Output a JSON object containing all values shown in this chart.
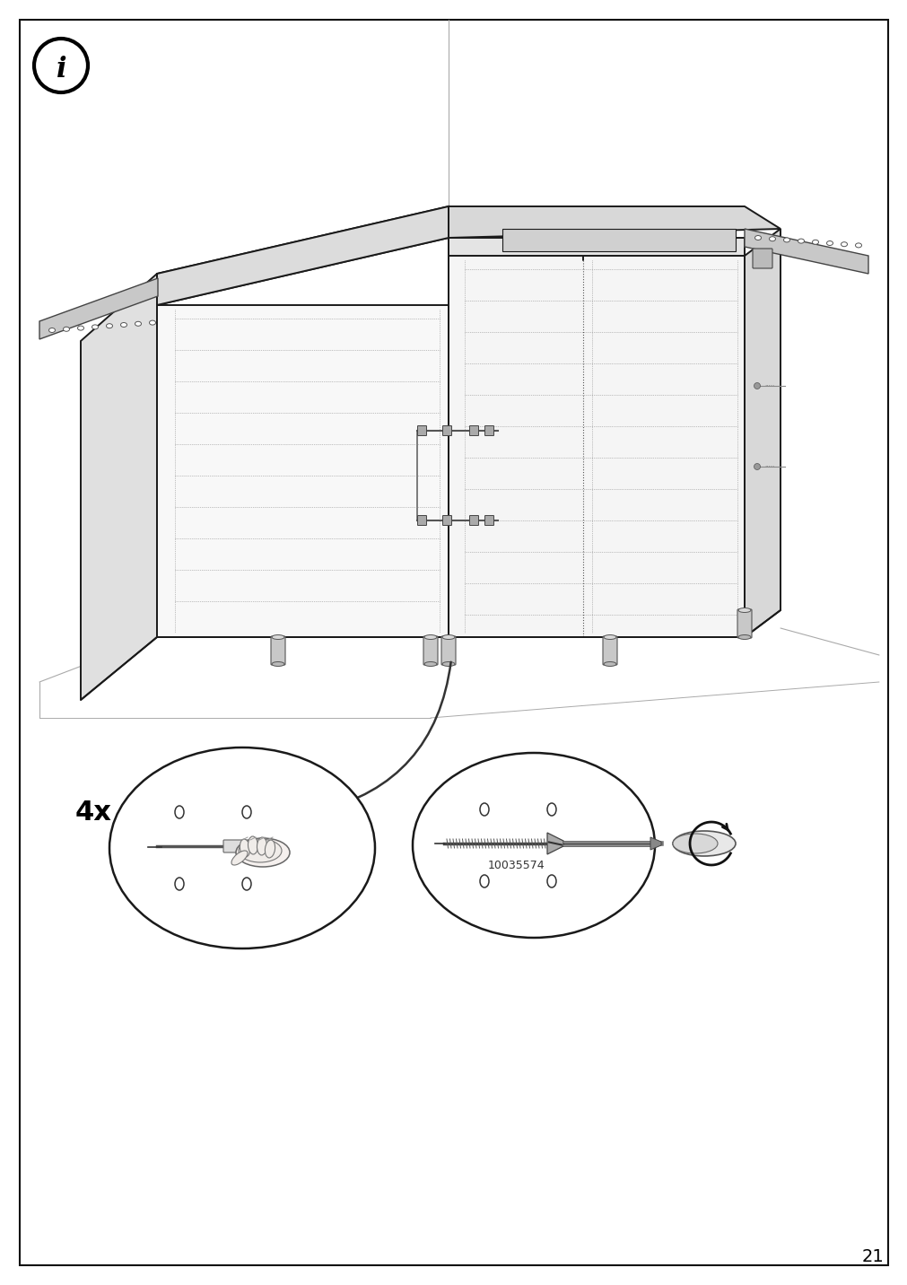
{
  "page_number": "21",
  "background_color": "#ffffff",
  "border_color": "#111111",
  "line_color": "#1a1a1a",
  "text_color": "#000000",
  "screw_part_number": "10035574",
  "multiplier_text": "4x",
  "light_gray": "#e8e8e8",
  "mid_gray": "#cccccc",
  "dark_gray": "#888888",
  "very_light": "#f4f4f4",
  "dot_color": "#777777",
  "rail_color": "#bbbbbb",
  "shadow_gray": "#d0d0d0",
  "wall_line_color": "#999999"
}
